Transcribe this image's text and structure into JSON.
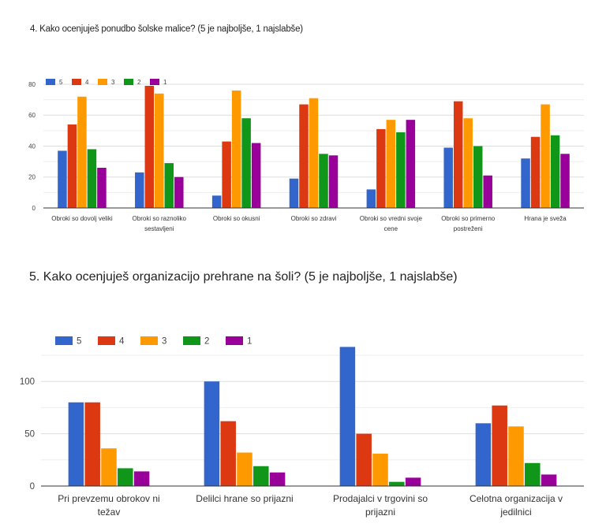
{
  "colors": {
    "5": "#3366cc",
    "4": "#dc3912",
    "3": "#ff9900",
    "2": "#109618",
    "1": "#990099"
  },
  "chart_data": [
    {
      "type": "bar",
      "title": "4. Kako ocenjuješ ponudbo šolske malice? (5 je najboljše, 1 najslabše)",
      "xlabel": "",
      "ylabel": "",
      "ylim": [
        0,
        80
      ],
      "yticks": [
        0,
        20,
        40,
        60,
        80
      ],
      "grid": true,
      "legend_position": "top-left",
      "categories": [
        "Obroki so dovolj veliki",
        "Obroki so raznoliko sestavljeni",
        "Obroki so okusni",
        "Obroki so zdravi",
        "Obroki so vredni svoje cene",
        "Obroki so primerno postreženi",
        "Hrana je sveža"
      ],
      "category_lines": [
        [
          "Obroki so dovolj veliki"
        ],
        [
          "Obroki so raznoliko",
          "sestavljeni"
        ],
        [
          "Obroki so okusni"
        ],
        [
          "Obroki so zdravi"
        ],
        [
          "Obroki so vredni svoje",
          "cene"
        ],
        [
          "Obroki so primerno",
          "postreženi"
        ],
        [
          "Hrana je sveža"
        ]
      ],
      "series": [
        {
          "name": "5",
          "values": [
            37,
            23,
            8,
            19,
            12,
            39,
            32
          ]
        },
        {
          "name": "4",
          "values": [
            54,
            79,
            43,
            67,
            51,
            69,
            46
          ]
        },
        {
          "name": "3",
          "values": [
            72,
            74,
            76,
            71,
            57,
            58,
            67
          ]
        },
        {
          "name": "2",
          "values": [
            38,
            29,
            58,
            35,
            49,
            40,
            47
          ]
        },
        {
          "name": "1",
          "values": [
            26,
            20,
            42,
            34,
            57,
            21,
            35
          ]
        }
      ]
    },
    {
      "type": "bar",
      "title": "5. Kako ocenjuješ organizacijo prehrane na šoli? (5 je najboljše, 1 najslabše)",
      "xlabel": "",
      "ylabel": "",
      "ylim": [
        0,
        125
      ],
      "yticks": [
        0,
        50,
        100
      ],
      "grid": true,
      "legend_position": "top-left",
      "categories": [
        "Pri prevzemu obrokov ni težav",
        "Delilci hrane so prijazni",
        "Prodajalci v trgovini so prijazni",
        "Celotna organizacija v jedilnici"
      ],
      "category_lines": [
        [
          "Pri prevzemu obrokov ni",
          "težav"
        ],
        [
          "Delilci hrane so prijazni"
        ],
        [
          "Prodajalci v trgovini so",
          "prijazni"
        ],
        [
          "Celotna organizacija v",
          "jedilnici"
        ]
      ],
      "series": [
        {
          "name": "5",
          "values": [
            80,
            100,
            133,
            60
          ]
        },
        {
          "name": "4",
          "values": [
            80,
            62,
            50,
            77
          ]
        },
        {
          "name": "3",
          "values": [
            36,
            32,
            31,
            57
          ]
        },
        {
          "name": "2",
          "values": [
            17,
            19,
            4,
            22
          ]
        },
        {
          "name": "1",
          "values": [
            14,
            13,
            8,
            11
          ]
        }
      ]
    }
  ]
}
